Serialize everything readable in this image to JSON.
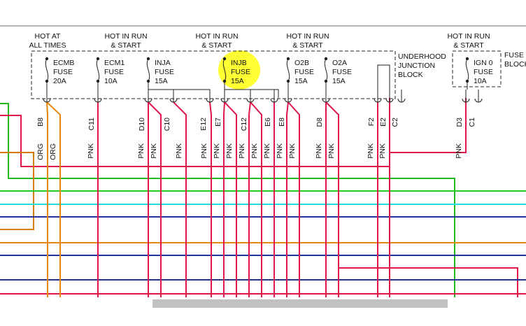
{
  "headers": [
    {
      "lines": [
        "HOT AT",
        "ALL TIMES"
      ]
    },
    {
      "lines": [
        "HOT IN RUN",
        "& START"
      ]
    },
    {
      "lines": [
        "HOT IN RUN",
        "& START"
      ]
    },
    {
      "lines": [
        "HOT IN RUN",
        "& START"
      ]
    },
    {
      "lines": [
        "HOT IN RUN",
        "& START"
      ]
    }
  ],
  "fuses": [
    {
      "name": "ECMB",
      "kind": "FUSE",
      "rating": "20A"
    },
    {
      "name": "ECM1",
      "kind": "FUSE",
      "rating": "10A"
    },
    {
      "name": "INJA",
      "kind": "FUSE",
      "rating": "15A"
    },
    {
      "name": "INJB",
      "kind": "FUSE",
      "rating": "15A"
    },
    {
      "name": "O2B",
      "kind": "FUSE",
      "rating": "15A"
    },
    {
      "name": "O2A",
      "kind": "FUSE",
      "rating": "15A"
    },
    {
      "name": "IGN 0",
      "kind": "FUSE",
      "rating": "10A"
    }
  ],
  "blocks": [
    {
      "lines": [
        "UNDERHOOD",
        "JUNCTION",
        "BLOCK"
      ]
    },
    {
      "lines": [
        "FUSE",
        "BLOCK"
      ]
    }
  ],
  "pins": [
    "B8",
    "C11",
    "D10",
    "C10",
    "E12",
    "E7",
    "C12",
    "E6",
    "E8",
    "D8",
    "F2",
    "E2",
    "C2",
    "D3",
    "C1"
  ],
  "wire_colors": [
    "ORG",
    "ORG",
    "PNK",
    "PNK",
    "PNK",
    "PNK",
    "PNK",
    "PNK",
    "PNK",
    "PNK",
    "PNK",
    "PNK",
    "PNK",
    "PNK",
    "PNK",
    "PNK",
    "PNK",
    "PNK",
    "PNK"
  ]
}
